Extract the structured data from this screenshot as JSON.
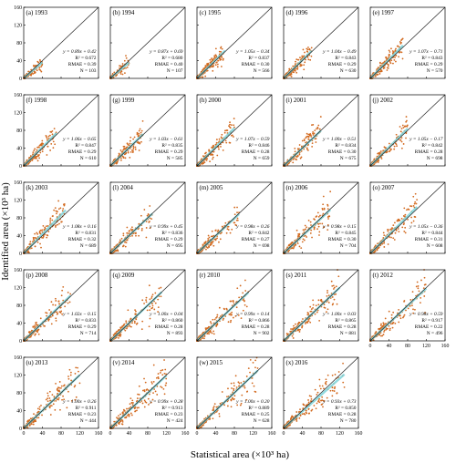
{
  "figure": {
    "ylabel": "Identified area (×10³ ha)",
    "xlabel": "Statistical area (×10³ ha)",
    "ticks": [
      "0",
      "40",
      "80",
      "120",
      "160"
    ]
  },
  "chart_data": {
    "type": "scatter",
    "xlim": [
      0,
      160
    ],
    "ylim": [
      0,
      160
    ],
    "xticks": [
      0,
      40,
      80,
      120,
      160
    ],
    "yticks": [
      0,
      40,
      80,
      120,
      160
    ],
    "xlabel": "Statistical area (×10³ ha)",
    "ylabel": "Identified area (×10³ ha)",
    "colors": {
      "points": "#d2691e",
      "fit": "#7fd3d9",
      "one_to_one": "#222222"
    },
    "panels": [
      {
        "label": "(a) 1993",
        "equation": "y = 0.89x + 0.42",
        "r2": "R² = 0.672",
        "rmae": "RMAE = 0.39",
        "n": "N = 103",
        "slope": 0.89,
        "intercept": 0.42,
        "count": 103,
        "xmax": 40
      },
      {
        "label": "(b) 1994",
        "equation": "y = 0.87x + 0.69",
        "r2": "R² = 0.680",
        "rmae": "RMAE = 0.40",
        "n": "N = 107",
        "slope": 0.87,
        "intercept": 0.69,
        "count": 107,
        "xmax": 40
      },
      {
        "label": "(c) 1995",
        "equation": "y = 1.05x − 0.34",
        "r2": "R² = 0.837",
        "rmae": "RMAE = 0.30",
        "n": "N = 566",
        "slope": 1.05,
        "intercept": -0.34,
        "count": 566,
        "xmax": 60
      },
      {
        "label": "(d) 1996",
        "equation": "y = 1.04x − 0.49",
        "r2": "R² = 0.843",
        "rmae": "RMAE = 0.29",
        "n": "N = 630",
        "slope": 1.04,
        "intercept": -0.49,
        "count": 630,
        "xmax": 60
      },
      {
        "label": "(e) 1997",
        "equation": "y = 1.07x − 0.71",
        "r2": "R² = 0.843",
        "rmae": "RMAE = 0.29",
        "n": "N = 570",
        "slope": 1.07,
        "intercept": -0.71,
        "count": 570,
        "xmax": 70
      },
      {
        "label": "(f) 1998",
        "equation": "y = 1.06x − 0.65",
        "r2": "R² = 0.847",
        "rmae": "RMAE = 0.29",
        "n": "N = 610",
        "slope": 1.06,
        "intercept": -0.65,
        "count": 610,
        "xmax": 70
      },
      {
        "label": "(g) 1999",
        "equation": "y = 1.03x − 0.61",
        "r2": "R² = 0.835",
        "rmae": "RMAE = 0.29",
        "n": "N = 585",
        "slope": 1.03,
        "intercept": -0.61,
        "count": 585,
        "xmax": 70
      },
      {
        "label": "(h) 2000",
        "equation": "y = 1.07x − 0.59",
        "r2": "R² = 0.846",
        "rmae": "RMAE = 0.28",
        "n": "N = 659",
        "slope": 1.07,
        "intercept": -0.59,
        "count": 659,
        "xmax": 80
      },
      {
        "label": "(i) 2001",
        "equation": "y = 1.00x − 0.51",
        "r2": "R² = 0.834",
        "rmae": "RMAE = 0.30",
        "n": "N = 675",
        "slope": 1.0,
        "intercept": -0.51,
        "count": 675,
        "xmax": 80
      },
      {
        "label": "(j) 2002",
        "equation": "y = 1.05x − 0.17",
        "r2": "R² = 0.842",
        "rmae": "RMAE = 0.28",
        "n": "N = 698",
        "slope": 1.05,
        "intercept": -0.17,
        "count": 698,
        "xmax": 80
      },
      {
        "label": "(k) 2003",
        "equation": "y = 1.08x + 0.16",
        "r2": "R² = 0.831",
        "rmae": "RMAE = 0.32",
        "n": "N = 689",
        "slope": 1.08,
        "intercept": 0.16,
        "count": 689,
        "xmax": 90
      },
      {
        "label": "(l) 2004",
        "equation": "y = 0.99x + 0.45",
        "r2": "R² = 0.836",
        "rmae": "RMAE = 0.29",
        "n": "N = 695",
        "slope": 0.99,
        "intercept": 0.45,
        "count": 695,
        "xmax": 90
      },
      {
        "label": "(m) 2005",
        "equation": "y = 0.98x + 0.26",
        "r2": "R² = 0.842",
        "rmae": "RMAE = 0.27",
        "n": "N = 698",
        "slope": 0.98,
        "intercept": 0.26,
        "count": 698,
        "xmax": 90
      },
      {
        "label": "(n) 2006",
        "equation": "y = 0.98x + 0.15",
        "r2": "R² = 0.845",
        "rmae": "RMAE = 0.30",
        "n": "N = 704",
        "slope": 0.98,
        "intercept": 0.15,
        "count": 704,
        "xmax": 100
      },
      {
        "label": "(o) 2007",
        "equation": "y = 1.05x − 0.36",
        "r2": "R² = 0.844",
        "rmae": "RMAE = 0.31",
        "n": "N = 608",
        "slope": 1.05,
        "intercept": -0.36,
        "count": 608,
        "xmax": 100
      },
      {
        "label": "(p) 2008",
        "equation": "y = 1.02x − 0.15",
        "r2": "R² = 0.833",
        "rmae": "RMAE = 0.29",
        "n": "N = 714",
        "slope": 1.02,
        "intercept": -0.15,
        "count": 714,
        "xmax": 100
      },
      {
        "label": "(q) 2009",
        "equation": "y = 1.00x + 0.04",
        "r2": "R² = 0.860",
        "rmae": "RMAE = 0.28",
        "n": "N = 893",
        "slope": 1.0,
        "intercept": 0.04,
        "count": 893,
        "xmax": 110
      },
      {
        "label": "(r) 2010",
        "equation": "y = 0.99x + 0.14",
        "r2": "R² = 0.866",
        "rmae": "RMAE = 0.28",
        "n": "N = 902",
        "slope": 0.99,
        "intercept": 0.14,
        "count": 902,
        "xmax": 110
      },
      {
        "label": "(s) 2011",
        "equation": "y = 1.00x + 0.03",
        "r2": "R² = 0.865",
        "rmae": "RMAE = 0.28",
        "n": "N = 881",
        "slope": 1.0,
        "intercept": 0.03,
        "count": 881,
        "xmax": 120
      },
      {
        "label": "(t) 2012",
        "equation": "y = 0.98x + 0.59",
        "r2": "R² = 0.917",
        "rmae": "RMAE = 0.22",
        "n": "N = 496",
        "slope": 0.98,
        "intercept": 0.59,
        "count": 496,
        "xmax": 120
      },
      {
        "label": "(u) 2013",
        "equation": "y = 1.00x + 0.26",
        "r2": "R² = 0.911",
        "rmae": "RMAE = 0.23",
        "n": "N = 444",
        "slope": 1.0,
        "intercept": 0.26,
        "count": 444,
        "xmax": 120
      },
      {
        "label": "(v) 2014",
        "equation": "y = 0.99x + 0.28",
        "r2": "R² = 0.913",
        "rmae": "RMAE = 0.23",
        "n": "N = 424",
        "slope": 0.99,
        "intercept": 0.28,
        "count": 424,
        "xmax": 120
      },
      {
        "label": "(w) 2015",
        "equation": "y = 1.00x + 0.20",
        "r2": "R² = 0.889",
        "rmae": "RMAE = 0.25",
        "n": "N = 628",
        "slope": 1.0,
        "intercept": 0.2,
        "count": 628,
        "xmax": 130
      },
      {
        "label": "(x) 2016",
        "equation": "y = 0.93x + 0.73",
        "r2": "R² = 0.850",
        "rmae": "RMAE = 0.28",
        "n": "N = 780",
        "slope": 0.93,
        "intercept": 0.73,
        "count": 780,
        "xmax": 130
      }
    ]
  }
}
